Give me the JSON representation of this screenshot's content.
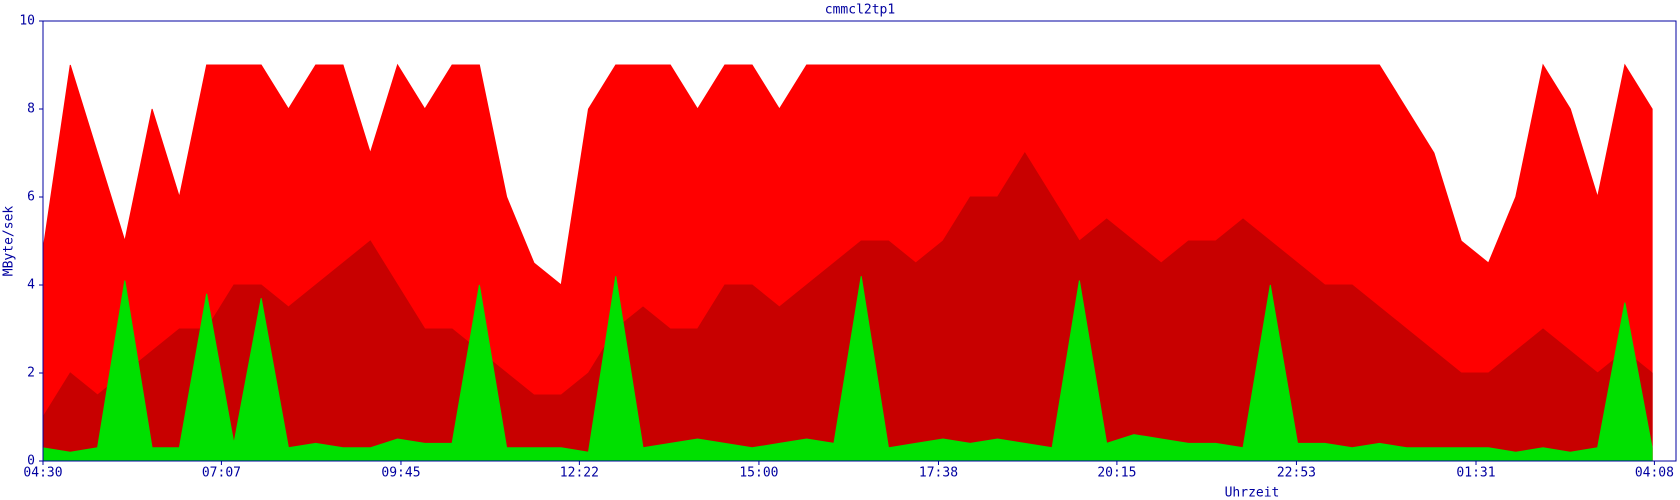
{
  "chart_data": {
    "type": "area",
    "title": "cmmcl2tp1",
    "xlabel": "Uhrzeit",
    "ylabel": "MByte/sek",
    "x": [
      0,
      24,
      48,
      72,
      96,
      120,
      144,
      168,
      192,
      216,
      240,
      264,
      288,
      312,
      336,
      360,
      384,
      408,
      432,
      456,
      480,
      504,
      528,
      552,
      576,
      600,
      624,
      648,
      672,
      696,
      720,
      744,
      768,
      792,
      816,
      840,
      864,
      888,
      912,
      936,
      960,
      984,
      1008,
      1032,
      1056,
      1080,
      1104,
      1128,
      1152,
      1176,
      1200,
      1224,
      1248,
      1272,
      1296,
      1320,
      1344,
      1368,
      1392,
      1416
    ],
    "series": [
      {
        "color": "#ff0000",
        "values": [
          4.8,
          9,
          7,
          5,
          8,
          6,
          9,
          9,
          9,
          8,
          9,
          9,
          7,
          9,
          8,
          9,
          9,
          6,
          4.5,
          4,
          8,
          9,
          9,
          9,
          8,
          9,
          9,
          8,
          9,
          9,
          9,
          9,
          9,
          9,
          9,
          9,
          9,
          9,
          9,
          9,
          9,
          9,
          9,
          9,
          9,
          9,
          9,
          9,
          9,
          9,
          8,
          7,
          5,
          4.5,
          6,
          9,
          8,
          6,
          9,
          8
        ]
      },
      {
        "color": "#c80000",
        "values": [
          1,
          2,
          1.5,
          2,
          2.5,
          3,
          3,
          4,
          4,
          3.5,
          4,
          4.5,
          5,
          4,
          3,
          3,
          2.5,
          2,
          1.5,
          1.5,
          2,
          3,
          3.5,
          3,
          3,
          4,
          4,
          3.5,
          4,
          4.5,
          5,
          5,
          4.5,
          5,
          6,
          6,
          7,
          6,
          5,
          5.5,
          5,
          4.5,
          5,
          5,
          5.5,
          5,
          4.5,
          4,
          4,
          3.5,
          3,
          2.5,
          2,
          2,
          2.5,
          3,
          2.5,
          2,
          2.5,
          2
        ]
      },
      {
        "color": "#00e000",
        "values": [
          0.3,
          0.2,
          0.3,
          4.1,
          0.3,
          0.3,
          3.8,
          0.4,
          3.7,
          0.3,
          0.4,
          0.3,
          0.3,
          0.5,
          0.4,
          0.4,
          4,
          0.3,
          0.3,
          0.3,
          0.2,
          4.2,
          0.3,
          0.4,
          0.5,
          0.4,
          0.3,
          0.4,
          0.5,
          0.4,
          4.2,
          0.3,
          0.4,
          0.5,
          0.4,
          0.5,
          0.4,
          0.3,
          4.1,
          0.4,
          0.6,
          0.5,
          0.4,
          0.4,
          0.3,
          4,
          0.4,
          0.4,
          0.3,
          0.4,
          0.3,
          0.3,
          0.3,
          0.3,
          0.2,
          0.3,
          0.2,
          0.3,
          3.6,
          0.3
        ]
      }
    ],
    "xlim": [
      0,
      1437
    ],
    "xticks": [
      {
        "value": 0,
        "label": "04:30"
      },
      {
        "value": 157,
        "label": "07:07"
      },
      {
        "value": 315,
        "label": "09:45"
      },
      {
        "value": 472,
        "label": "12:22"
      },
      {
        "value": 630,
        "label": "15:00"
      },
      {
        "value": 788,
        "label": "17:38"
      },
      {
        "value": 945,
        "label": "20:15"
      },
      {
        "value": 1103,
        "label": "22:53"
      },
      {
        "value": 1261,
        "label": "01:31"
      },
      {
        "value": 1418,
        "label": "04:08"
      }
    ],
    "ylim": [
      0,
      10
    ],
    "yticks": [
      0,
      2,
      4,
      6,
      8,
      10
    ],
    "axis_color": "#0000a0"
  }
}
